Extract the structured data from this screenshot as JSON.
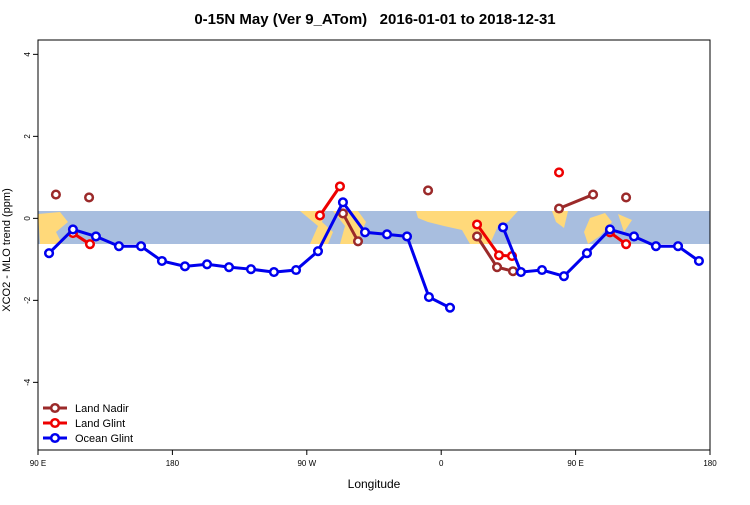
{
  "chart_data": {
    "type": "line",
    "title": "0-15N May (Ver 9_ATom)   2016-01-01 to 2018-12-31",
    "x_label": "Longitude",
    "y_label": "XCO2 - MLO trend (ppm)",
    "xlim": [
      90,
      540
    ],
    "ylim": [
      -5.65,
      4.35
    ],
    "xticks": [
      {
        "value": 90,
        "label": "90 E"
      },
      180,
      {
        "value": 270,
        "label": "90 W"
      },
      {
        "value": 360,
        "label": "0"
      },
      {
        "value": 450,
        "label": "90 E"
      },
      {
        "value": 540,
        "label": "180"
      }
    ],
    "yticks": [
      -4,
      -2,
      0,
      2,
      4
    ],
    "legend": "bottom-left",
    "series": [
      {
        "name": "Land Nadir",
        "color": "#9b2a2a",
        "x": [
          102,
          null,
          124.2,
          null,
          294.2,
          304.3,
          null,
          351.2,
          null,
          384,
          397.4,
          408.1,
          null,
          438.9,
          461.7,
          null,
          483.8
        ],
        "values": [
          0.58,
          null,
          0.51,
          null,
          0.12,
          -0.56,
          null,
          0.68,
          null,
          -0.44,
          -1.19,
          -1.29,
          null,
          0.24,
          0.58,
          null,
          0.51
        ]
      },
      {
        "name": "Land Glint",
        "color": "#ee0000",
        "x": [
          113.4,
          124.8,
          null,
          278.8,
          292.2,
          null,
          384,
          398.7,
          407.4,
          null,
          438.9,
          null,
          473,
          483.8
        ],
        "values": [
          -0.36,
          -0.63,
          null,
          0.07,
          0.78,
          null,
          -0.15,
          -0.9,
          -0.92,
          null,
          1.12,
          null,
          -0.34,
          -0.63
        ]
      },
      {
        "name": "Ocean Glint",
        "color": "#0000ee",
        "x": [
          97.4,
          113.4,
          128.8,
          144.2,
          159,
          173,
          188.4,
          203.2,
          217.9,
          232.6,
          248,
          262.8,
          277.5,
          294.2,
          309,
          323.7,
          337.1,
          351.8,
          365.9,
          null,
          401.4,
          413.4,
          427.5,
          442.2,
          457.6,
          473,
          489.1,
          503.8,
          518.6,
          532.6
        ],
        "values": [
          -0.85,
          -0.27,
          -0.44,
          -0.68,
          -0.68,
          -1.04,
          -1.17,
          -1.12,
          -1.19,
          -1.24,
          -1.31,
          -1.26,
          -0.8,
          0.39,
          -0.34,
          -0.39,
          -0.44,
          -1.92,
          -2.18,
          null,
          -0.22,
          -1.31,
          -1.26,
          -1.41,
          -0.85,
          -0.27,
          -0.44,
          -0.68,
          -0.68,
          -1.04
        ]
      }
    ]
  }
}
